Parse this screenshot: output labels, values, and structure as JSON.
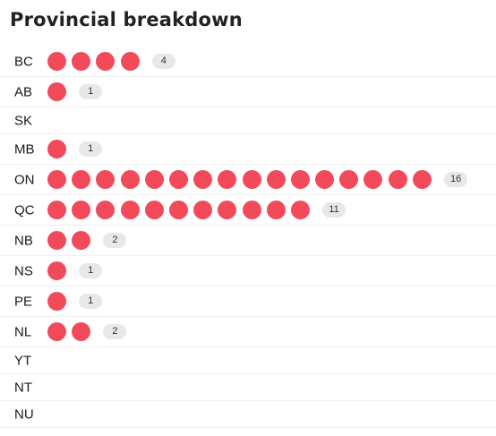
{
  "title": "Provincial breakdown",
  "chart_data": {
    "type": "dot",
    "title": "Provincial breakdown",
    "categories": [
      "BC",
      "AB",
      "SK",
      "MB",
      "ON",
      "QC",
      "NB",
      "NS",
      "PE",
      "NL",
      "YT",
      "NT",
      "NU"
    ],
    "values": [
      4,
      1,
      0,
      1,
      16,
      11,
      2,
      1,
      1,
      2,
      0,
      0,
      0
    ],
    "colors": {
      "dot": "#f24a5a",
      "badge": "#e8e8e8"
    }
  }
}
